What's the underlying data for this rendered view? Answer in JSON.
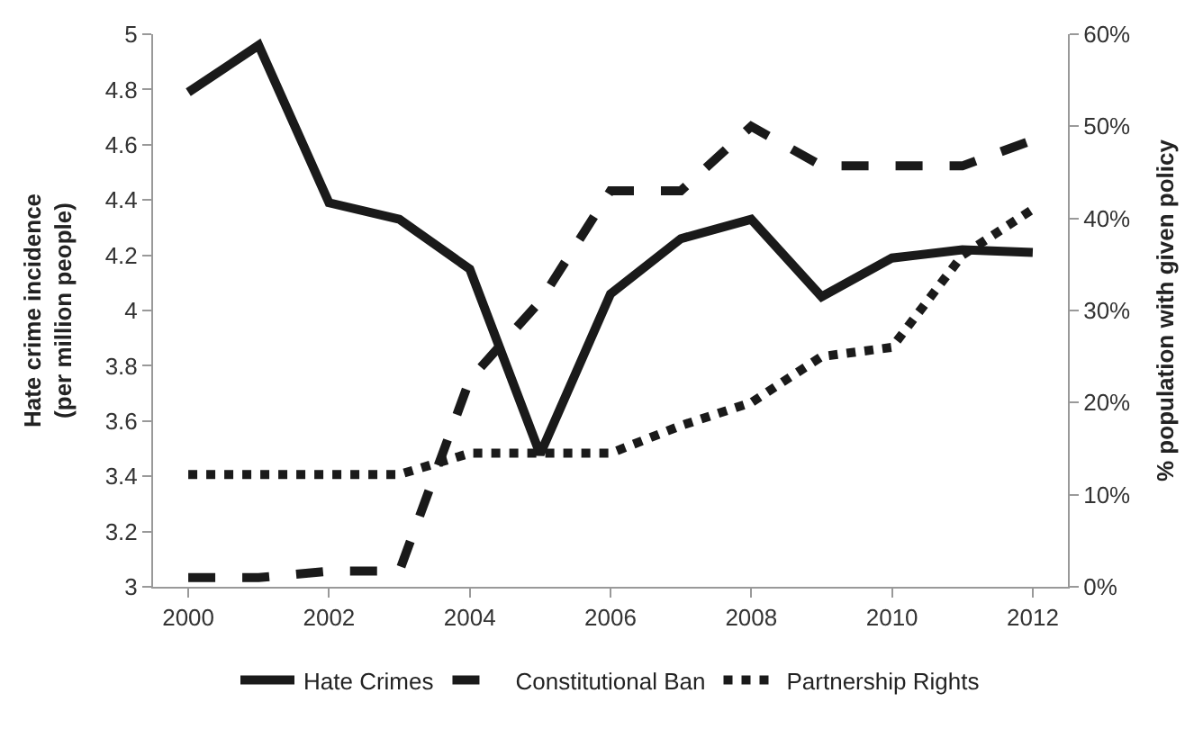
{
  "chart_data": {
    "type": "line",
    "ylabel": "Hate crime incidence\n(per million people)",
    "y2label": "% population with given policy",
    "x": [
      2000,
      2001,
      2002,
      2003,
      2004,
      2005,
      2006,
      2007,
      2008,
      2009,
      2010,
      2011,
      2012
    ],
    "xlim": [
      1999.5,
      2012.5
    ],
    "xticks": [
      2000,
      2002,
      2004,
      2006,
      2008,
      2010,
      2012
    ],
    "ylim": [
      3,
      5
    ],
    "yticks": [
      3,
      3.2,
      3.4,
      3.6,
      3.8,
      4,
      4.2,
      4.4,
      4.6,
      4.8,
      5
    ],
    "y2lim": [
      0,
      60
    ],
    "y2ticks": [
      {
        "value": 0,
        "label": "0%"
      },
      {
        "value": 10,
        "label": "10%"
      },
      {
        "value": 20,
        "label": "20%"
      },
      {
        "value": 30,
        "label": "30%"
      },
      {
        "value": 40,
        "label": "40%"
      },
      {
        "value": 50,
        "label": "50%"
      },
      {
        "value": 60,
        "label": "60%"
      }
    ],
    "legend": "bottom",
    "marker": "none",
    "series": [
      {
        "name": "Hate Crimes",
        "color": "#1a1a1a",
        "line_style": "solid",
        "values": [
          4.79,
          4.96,
          4.39,
          4.33,
          4.15,
          3.48,
          4.06,
          4.26,
          4.33,
          4.05,
          4.19,
          4.22,
          4.21
        ]
      },
      {
        "name": "Constitutional Ban",
        "color": "#1a1a1a",
        "line_style": "dashed",
        "axis": "y2",
        "values": [
          1,
          1,
          1.7,
          1.7,
          22.5,
          31,
          43,
          43,
          50,
          45.7,
          45.7,
          45.7,
          48.5
        ]
      },
      {
        "name": "Partnership Rights",
        "color": "#1a1a1a",
        "line_style": "dotted",
        "axis": "y2",
        "values": [
          12.2,
          12.2,
          12.2,
          12.2,
          14.5,
          14.5,
          14.5,
          17.5,
          20,
          25,
          26,
          36,
          41
        ]
      }
    ]
  }
}
